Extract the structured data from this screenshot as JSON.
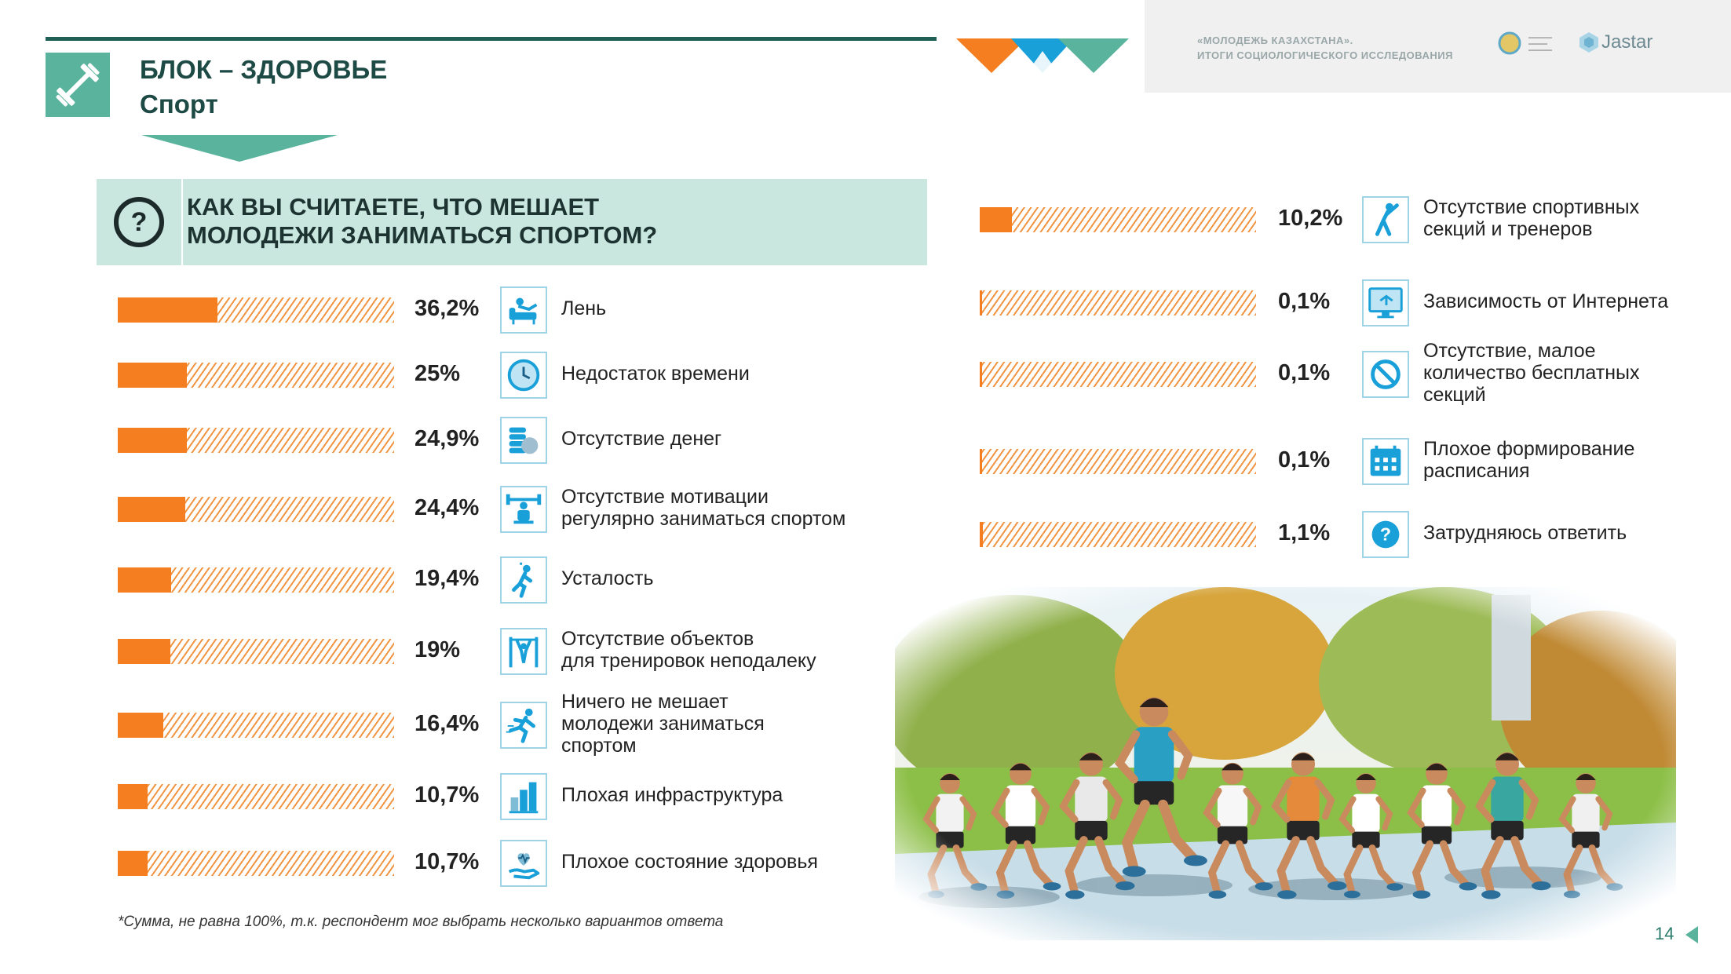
{
  "header": {
    "block_title": "БЛОК – ЗДОРОВЬЕ",
    "block_subtitle": "Спорт",
    "brand_line1": "«МОЛОДЕЖЬ КАЗАХСТАНА».",
    "brand_line2": "ИТОГИ СОЦИОЛОГИЧЕСКОГО ИССЛЕДОВАНИЯ",
    "jastar": "Jastar",
    "block_icon": "dumbbell-icon",
    "colors": {
      "accent_orange": "#f47e20",
      "accent_teal": "#5ab39d",
      "dark_teal": "#1f5f55",
      "question_bg": "#c9e7df",
      "icon_blue": "#1aa0d8"
    }
  },
  "question": {
    "line1": "КАК ВЫ СЧИТАЕТЕ, ЧТО МЕШАЕТ",
    "line2": "МОЛОДЕЖИ ЗАНИМАТЬСЯ СПОРТОМ?",
    "icon": "question-circle-icon"
  },
  "chart_data": {
    "type": "bar",
    "orientation": "horizontal",
    "xlim": [
      0,
      100
    ],
    "categories": [
      "Лень",
      "Недостаток времени",
      "Отсутствие денег",
      "Отсутствие мотивации регулярно заниматься спортом",
      "Усталость",
      "Отсутствие объектов для тренировок неподалеку",
      "Ничего не мешает молодежи заниматься спортом",
      "Плохая инфраструктура",
      "Плохое состояние здоровья",
      "Отсутствие спортивных секций и тренеров",
      "Зависимость от Интернета",
      "Отсутствие, малое количество бесплатных секций",
      "Плохое формирование расписания",
      "Затрудняюсь ответить"
    ],
    "values": [
      36.2,
      25,
      24.9,
      24.4,
      19.4,
      19,
      16.4,
      10.7,
      10.7,
      10.2,
      0.1,
      0.1,
      0.1,
      1.1
    ],
    "value_labels": [
      "36,2%",
      "25%",
      "24,9%",
      "24,4%",
      "19,4%",
      "19%",
      "16,4%",
      "10,7%",
      "10,7%",
      "10,2%",
      "0,1%",
      "0,1%",
      "0,1%",
      "1,1%"
    ],
    "label_lines": [
      [
        "Лень"
      ],
      [
        "Недостаток времени"
      ],
      [
        "Отсутствие денег"
      ],
      [
        "Отсутствие мотивации",
        "регулярно заниматься спортом"
      ],
      [
        "Усталость"
      ],
      [
        "Отсутствие объектов",
        "для тренировок неподалеку"
      ],
      [
        "Ничего не мешает",
        "молодежи заниматься",
        "спортом"
      ],
      [
        "Плохая инфраструктура"
      ],
      [
        "Плохое состояние здоровья"
      ],
      [
        "Отсутствие спортивных",
        "секций и тренеров"
      ],
      [
        "Зависимость от Интернета"
      ],
      [
        "Отсутствие, малое",
        "количество бесплатных",
        "секций"
      ],
      [
        "Плохое формирование",
        "расписания"
      ],
      [
        "Затрудняюсь ответить"
      ]
    ],
    "icons": [
      "couch-lazy-icon",
      "clock-icon",
      "coins-icon",
      "lifter-icon",
      "tired-person-icon",
      "pullup-bar-icon",
      "runner-icon",
      "buildings-icon",
      "heart-hand-icon",
      "stretch-athlete-icon",
      "monitor-icon",
      "no-sign-icon",
      "calendar-icon",
      "question-icon"
    ]
  },
  "footnote": "*Сумма, не равна 100%, т.к. респондент мог выбрать несколько вариантов ответа",
  "page_number": "14"
}
